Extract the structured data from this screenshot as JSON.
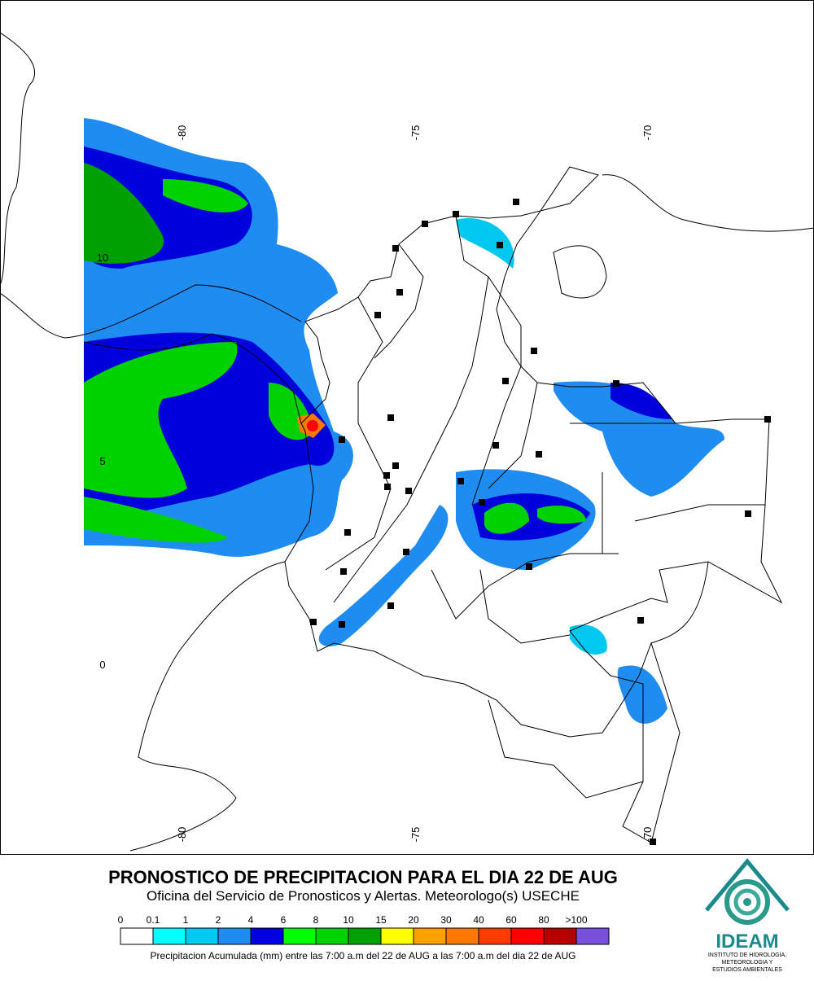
{
  "map": {
    "graticule": {
      "lon_top": [
        "-80",
        "-75",
        "-70"
      ],
      "lon_bottom": [
        "-80",
        "-75",
        "-70"
      ],
      "lat": [
        "10",
        "5",
        "0"
      ]
    }
  },
  "header": {
    "title": "PRONOSTICO DE PRECIPITACION PARA EL DIA 22 DE AUG",
    "subtitle": "Oficina del Servicio de Pronosticos y Alertas. Meteorologo(s) USECHE"
  },
  "legend": {
    "items": [
      {
        "label": "0",
        "color": "#ffffff"
      },
      {
        "label": "0.1",
        "color": "#00ffff"
      },
      {
        "label": "1",
        "color": "#00c8f0"
      },
      {
        "label": "2",
        "color": "#1e8cf0"
      },
      {
        "label": "4",
        "color": "#0000dc"
      },
      {
        "label": "6",
        "color": "#00ff00"
      },
      {
        "label": "8",
        "color": "#00d200"
      },
      {
        "label": "10",
        "color": "#00a000"
      },
      {
        "label": "15",
        "color": "#ffff00"
      },
      {
        "label": "20",
        "color": "#ffa000"
      },
      {
        "label": "30",
        "color": "#ff7800"
      },
      {
        "label": "40",
        "color": "#ff3c00"
      },
      {
        "label": "60",
        "color": "#ff0000"
      },
      {
        "label": "80",
        "color": "#b40000"
      },
      {
        "label": ">100",
        "color": "#7850dc"
      }
    ],
    "caption": "Precipitacion Acumulada (mm) entre las 7:00 a.m del 22 de AUG a las 7:00 a.m del dia 22 de AUG"
  },
  "logo": {
    "name": "IDEAM",
    "lines": [
      "INSTITUTO DE HIDROLOGIA,",
      "METEOROLOGIA Y",
      "ESTUDIOS AMBIENTALES"
    ]
  }
}
